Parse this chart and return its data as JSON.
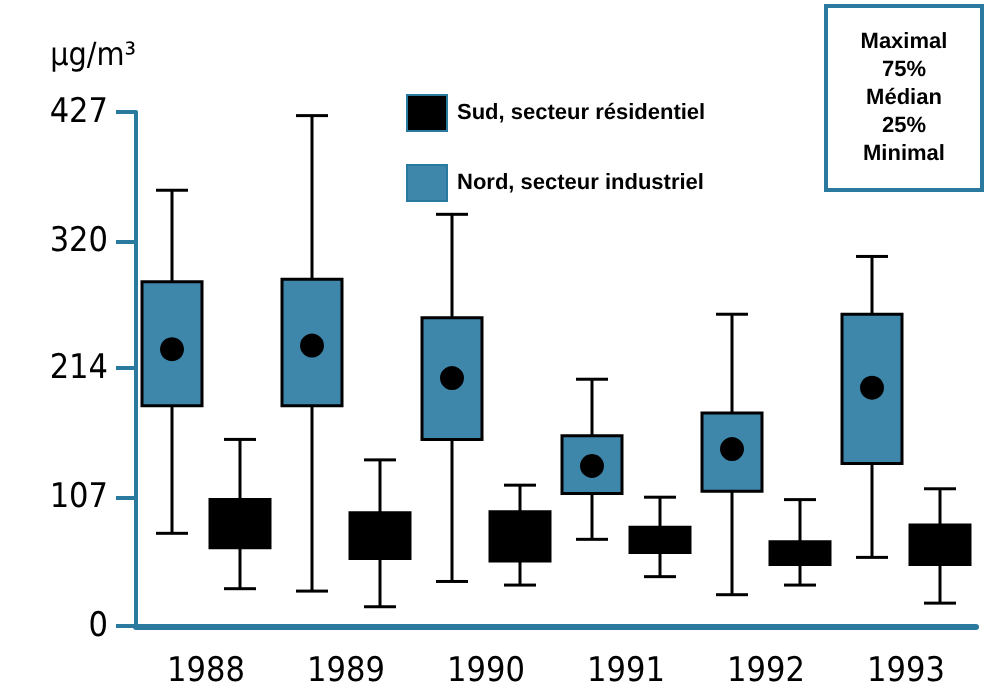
{
  "chart_data": {
    "type": "box",
    "ylabel": "µg/m³",
    "categories": [
      "1988",
      "1989",
      "1990",
      "1991",
      "1992",
      "1993"
    ],
    "ylim": [
      0,
      427
    ],
    "yticks": [
      0,
      107,
      214,
      320,
      427
    ],
    "grid": false,
    "legend": "top",
    "annotations": [
      "Maximal",
      "75%",
      "Médian",
      "25%",
      "Minimal"
    ],
    "series": [
      {
        "name": "Sud, secteur résidentiel",
        "color": "#000000",
        "boxes": [
          {
            "low": 31,
            "q1": 65,
            "median": null,
            "q3": 105,
            "high": 155
          },
          {
            "low": 16,
            "q1": 56,
            "median": null,
            "q3": 94,
            "high": 138
          },
          {
            "low": 34,
            "q1": 54,
            "median": null,
            "q3": 95,
            "high": 117
          },
          {
            "low": 41,
            "q1": 61,
            "median": null,
            "q3": 82,
            "high": 107
          },
          {
            "low": 34,
            "q1": 51,
            "median": null,
            "q3": 70,
            "high": 105
          },
          {
            "low": 19,
            "q1": 51,
            "median": null,
            "q3": 84,
            "high": 114
          }
        ]
      },
      {
        "name": "Nord, secteur industriel",
        "color": "#3f86ab",
        "boxes": [
          {
            "low": 77,
            "q1": 183,
            "median": 230,
            "q3": 286,
            "high": 362
          },
          {
            "low": 29,
            "q1": 183,
            "median": 233,
            "q3": 288,
            "high": 424
          },
          {
            "low": 37,
            "q1": 155,
            "median": 206,
            "q3": 256,
            "high": 342
          },
          {
            "low": 72,
            "q1": 110,
            "median": 133,
            "q3": 158,
            "high": 205
          },
          {
            "low": 26,
            "q1": 112,
            "median": 147,
            "q3": 177,
            "high": 259
          },
          {
            "low": 57,
            "q1": 135,
            "median": 198,
            "q3": 259,
            "high": 307
          }
        ]
      }
    ]
  }
}
